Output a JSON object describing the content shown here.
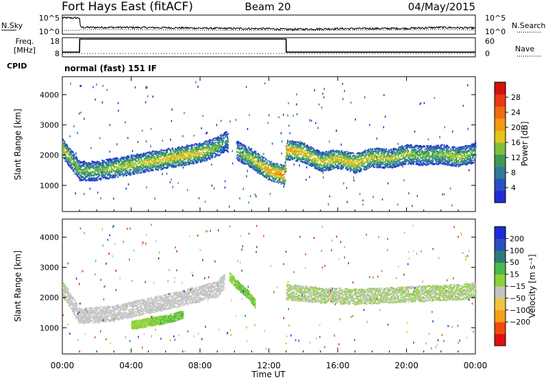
{
  "header": {
    "title": "Fort Hays East (fitACF)",
    "beam": "Beam 20",
    "date": "04/May/2015"
  },
  "noise_panel": {
    "left_label": "N.Sky",
    "right_label": "N.Search",
    "left_ticks": [
      "10^5",
      "10^0"
    ],
    "right_ticks": [
      "10^5",
      "10^0"
    ]
  },
  "freq_panel": {
    "left_label": "Freq.",
    "left_unit": "[MHz]",
    "right_label": "Nave",
    "left_ticks": [
      "18",
      "8"
    ],
    "right_ticks": [
      "60",
      "0"
    ],
    "cpid_label": "CPID",
    "cpid_text": "normal (fast) 151 IF"
  },
  "colors": {
    "power_scale": [
      "#1e2cd8",
      "#2a4fbf",
      "#2f7a9a",
      "#3d9a5a",
      "#7dbe3a",
      "#e3c41c",
      "#f29a12",
      "#f06a10",
      "#e83a10",
      "#d81010"
    ],
    "velocity_scale": [
      "#e01010",
      "#f04a10",
      "#f5a016",
      "#f0c43c",
      "#c4c4c4",
      "#8fd13c",
      "#4cb84c",
      "#2f7a7a",
      "#2a4fbf",
      "#1e2cd8"
    ]
  },
  "chart_data": [
    {
      "type": "line",
      "name": "noise",
      "x": [
        0,
        1,
        1.05,
        3,
        6,
        9,
        12,
        13,
        16,
        20,
        22,
        23.9
      ],
      "series": [
        {
          "name": "N.Sky",
          "values": [
            4.5,
            4.5,
            1.6,
            1.6,
            1.5,
            1.3,
            1.2,
            1.0,
            1.2,
            1.3,
            1.6,
            1.4
          ]
        },
        {
          "name": "N.Search",
          "values": [
            0.8,
            0.8,
            1.0,
            1.0,
            0.9,
            0.8,
            0.8,
            0.7,
            0.8,
            0.9,
            1.0,
            0.9
          ]
        }
      ],
      "ylim": [
        0,
        5
      ],
      "xlim": [
        0,
        24
      ]
    },
    {
      "type": "line",
      "name": "frequency",
      "x": [
        0,
        1,
        1.01,
        13,
        13.01,
        24
      ],
      "series": [
        {
          "name": "Freq.",
          "values": [
            10.0,
            10.0,
            18.0,
            18.0,
            10.0,
            10.0
          ]
        },
        {
          "name": "Nave",
          "values": [
            8,
            8,
            8,
            8,
            8,
            8
          ]
        }
      ],
      "ylim": [
        8,
        18
      ],
      "xlim": [
        0,
        24
      ]
    },
    {
      "type": "heatmap",
      "name": "power",
      "ylabel": "Slant Range [km]",
      "yticks": [
        "1000",
        "2000",
        "3000",
        "4000"
      ],
      "ylim": [
        180,
        4550
      ],
      "xlim": [
        0,
        24
      ],
      "colorbar_label": "Power [dB]",
      "colorbar_ticks": [
        "4",
        "8",
        "12",
        "16",
        "20",
        "24",
        "28"
      ],
      "colorbar_range": [
        0,
        32
      ],
      "main_band": {
        "x": [
          0,
          1,
          2,
          3,
          4,
          5,
          6,
          7,
          8,
          9,
          9.5,
          10,
          11,
          12,
          12.9,
          13,
          14,
          15,
          16,
          17,
          18,
          19,
          20,
          21,
          22,
          23,
          24
        ],
        "center_km": [
          2250,
          1500,
          1500,
          1600,
          1700,
          1800,
          1900,
          2000,
          2100,
          2300,
          2500,
          2200,
          1900,
          1500,
          1350,
          2200,
          2100,
          1800,
          1900,
          1750,
          1950,
          1900,
          2050,
          2000,
          2050,
          1950,
          2100
        ],
        "level_db": [
          18,
          14,
          14,
          16,
          17,
          18,
          19,
          20,
          19,
          14,
          10,
          13,
          18,
          22,
          24,
          22,
          20,
          18,
          19,
          20,
          18,
          17,
          16,
          14,
          14,
          18,
          12
        ]
      }
    },
    {
      "type": "heatmap",
      "name": "velocity",
      "ylabel": "Slant Range [km]",
      "yticks": [
        "1000",
        "2000",
        "3000",
        "4000"
      ],
      "ylim": [
        180,
        4550
      ],
      "xlim": [
        0,
        24
      ],
      "xticks": [
        "00:00",
        "04:00",
        "08:00",
        "12:00",
        "16:00",
        "20:00",
        "00:00"
      ],
      "xlabel": "Time UT",
      "colorbar_label": "Velocity [m s⁻¹]",
      "colorbar_ticks": [
        "200",
        "100",
        "50",
        "15",
        "−15",
        "−50",
        "−100",
        "−200"
      ],
      "colorbar_range": [
        -250,
        250
      ],
      "bands": [
        {
          "x": [
            0,
            1,
            3,
            5,
            7,
            9,
            9.4
          ],
          "center_km": [
            2300,
            1400,
            1500,
            1750,
            2000,
            2300,
            2600
          ],
          "velocity": [
            0,
            -20,
            -25,
            -20,
            -15,
            -10,
            -10
          ]
        },
        {
          "x": [
            13,
            15,
            17,
            19,
            21,
            23,
            24
          ],
          "center_km": [
            2200,
            2100,
            2050,
            2100,
            2150,
            2200,
            2250
          ],
          "velocity": [
            0,
            0,
            0,
            0,
            0,
            0,
            0
          ]
        },
        {
          "x": [
            4,
            5,
            6,
            7
          ],
          "center_km": [
            1100,
            1200,
            1300,
            1450
          ],
          "velocity": [
            40,
            45,
            50,
            50
          ]
        },
        {
          "x": [
            9.7,
            10.2,
            10.8,
            11.2
          ],
          "center_km": [
            2700,
            2400,
            2100,
            1800
          ],
          "velocity": [
            40,
            50,
            50,
            45
          ]
        }
      ]
    }
  ]
}
